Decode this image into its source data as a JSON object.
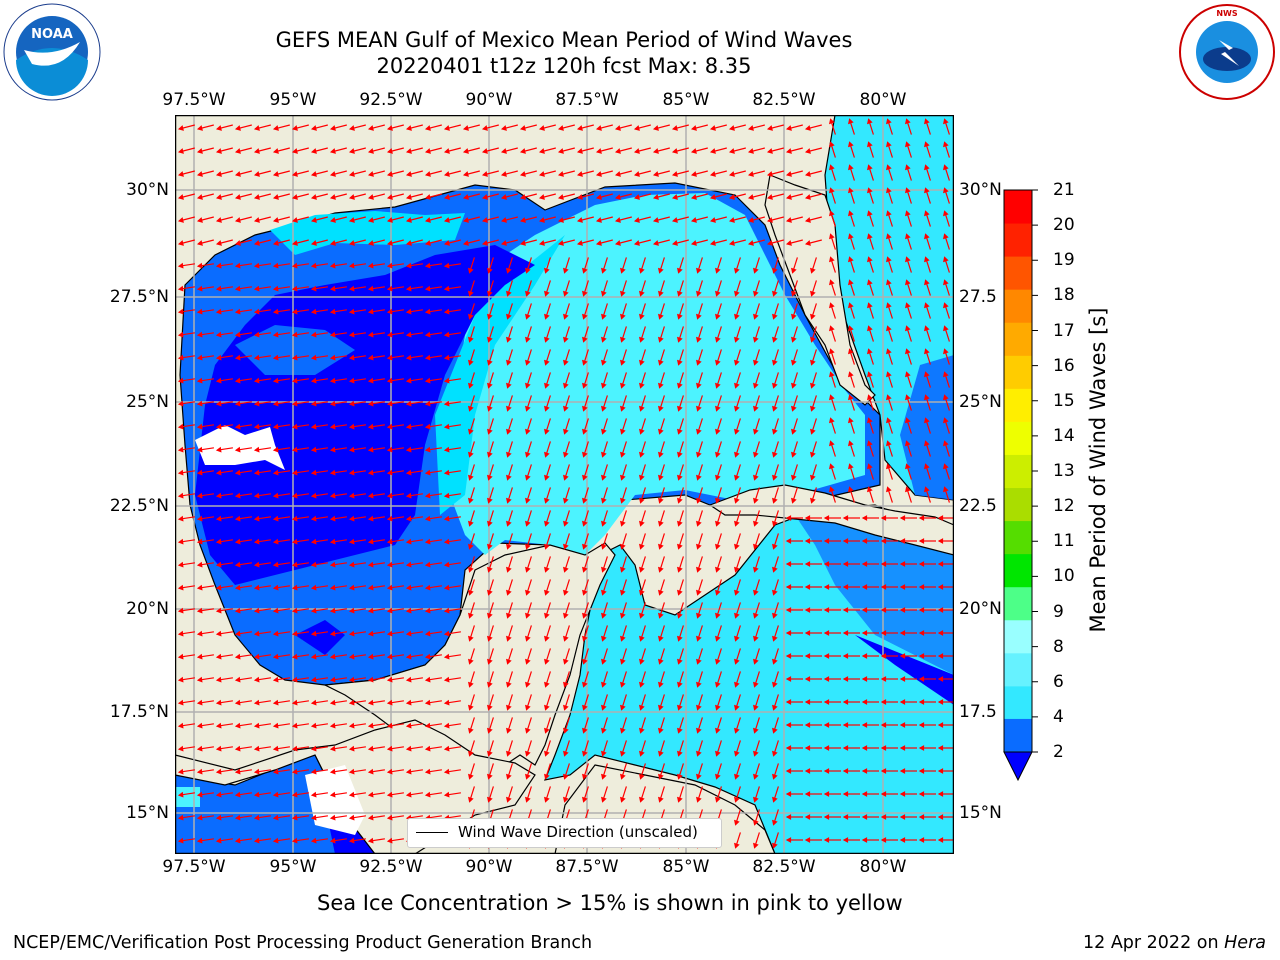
{
  "title": {
    "line1": "GEFS MEAN Gulf of Mexico Mean Period of Wind Waves",
    "line2": "20220401 t12z 120h fcst   Max: 8.35"
  },
  "axes": {
    "lon_labels": [
      "97.5°W",
      "95°W",
      "92.5°W",
      "90°W",
      "87.5°W",
      "85°W",
      "82.5°W",
      "80°W"
    ],
    "lat_labels_left": [
      "30°N",
      "27.5°N",
      "25°N",
      "22.5°N",
      "20°N",
      "17.5°N",
      "15°N"
    ],
    "lat_labels_right": [
      "30°N",
      "27.5",
      "25°N",
      "22.5",
      "20°N",
      "17.5",
      "15°N"
    ]
  },
  "legend": {
    "text": "Wind Wave Direction (unscaled)"
  },
  "colorbar": {
    "label": "Mean Period of Wind Waves [s]",
    "ticks": [
      "2",
      "4",
      "6",
      "8",
      "9",
      "10",
      "11",
      "12",
      "13",
      "14",
      "15",
      "16",
      "17",
      "18",
      "19",
      "20",
      "21"
    ],
    "colors": [
      "#0a6cff",
      "#00d9ff",
      "#33e8ff",
      "#66f2ff",
      "#99ffff",
      "#4dff88",
      "#00e600",
      "#55dd00",
      "#aadd00",
      "#ccee00",
      "#eeff00",
      "#ffee00",
      "#ffcc00",
      "#ffaa00",
      "#ff8800",
      "#ff5500",
      "#ff2200",
      "#ff0000"
    ],
    "extend_color": "#0000ff"
  },
  "colors": {
    "land": "#eeeddc",
    "very_low": "#0000ff",
    "low": "#0a6cff",
    "mid": "#00e1ff",
    "high": "#4cf3ff",
    "arrow": "#ff0000"
  },
  "notes": {
    "sea_ice": "Sea Ice Concentration > 15% is shown in pink to yellow"
  },
  "footer": {
    "left": "NCEP/EMC/Verification Post Processing Product Generation Branch",
    "date": "12 Apr 2022 on ",
    "machine": "Hera"
  },
  "logos": {
    "noaa": "NOAA",
    "nws": "NATIONAL WEATHER SERVICE"
  }
}
